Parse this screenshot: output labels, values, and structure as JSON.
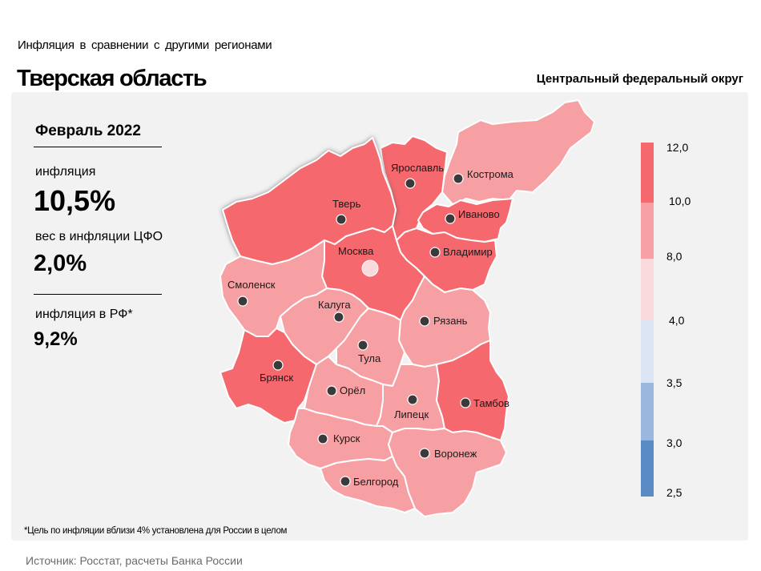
{
  "header": {
    "subtitle": "Инфляция  в сравнении  с другими  регионами",
    "title": "Тверская область",
    "district": "Центральный федеральный округ"
  },
  "info": {
    "period": "Февраль 2022",
    "inflation_label": "инфляция",
    "inflation_value": "10,5%",
    "weight_label": "вес в инфляции  ЦФО",
    "weight_value": "2,0%",
    "rf_label": "инфляция  в РФ*",
    "rf_value": "9,2%"
  },
  "legend": {
    "ticks": [
      "12,0",
      "10,0",
      "8,0",
      "4,0",
      "3,5",
      "3,0",
      "2,5"
    ],
    "bins": [
      {
        "from": 10.0,
        "to": 12.0,
        "color": "#f4686e"
      },
      {
        "from": 8.0,
        "to": 10.0,
        "color": "#f7a0a4"
      },
      {
        "from": 4.0,
        "to": 8.0,
        "color": "#fadadd"
      },
      {
        "from": 3.5,
        "to": 4.0,
        "color": "#dbe5f4"
      },
      {
        "from": 3.0,
        "to": 3.5,
        "color": "#9ab8dd"
      },
      {
        "from": 2.5,
        "to": 3.0,
        "color": "#5b8bc5"
      }
    ]
  },
  "regions": [
    {
      "name": "Тверь",
      "bin": "10-12",
      "highlighted": true
    },
    {
      "name": "Ярославль",
      "bin": "10-12"
    },
    {
      "name": "Кострома",
      "bin": "8-10"
    },
    {
      "name": "Иваново",
      "bin": "10-12"
    },
    {
      "name": "Владимир",
      "bin": "10-12"
    },
    {
      "name": "Москва",
      "bin": "10-12"
    },
    {
      "name": "Смоленск",
      "bin": "8-10"
    },
    {
      "name": "Калуга",
      "bin": "8-10"
    },
    {
      "name": "Рязань",
      "bin": "8-10"
    },
    {
      "name": "Тула",
      "bin": "8-10"
    },
    {
      "name": "Брянск",
      "bin": "10-12"
    },
    {
      "name": "Орёл",
      "bin": "8-10"
    },
    {
      "name": "Липецк",
      "bin": "8-10"
    },
    {
      "name": "Тамбов",
      "bin": "10-12"
    },
    {
      "name": "Курск",
      "bin": "8-10"
    },
    {
      "name": "Воронеж",
      "bin": "8-10"
    },
    {
      "name": "Белгород",
      "bin": "8-10"
    }
  ],
  "colors": {
    "high": "#f4686e",
    "mid": "#f7a0a4",
    "panel": "#f2f2f2",
    "city_dot": "#3a3a3a"
  },
  "footnote": "*Цель по инфляции вблизи 4% установлена для России в  целом",
  "source": "Источник: Росстат, расчеты Банка России"
}
